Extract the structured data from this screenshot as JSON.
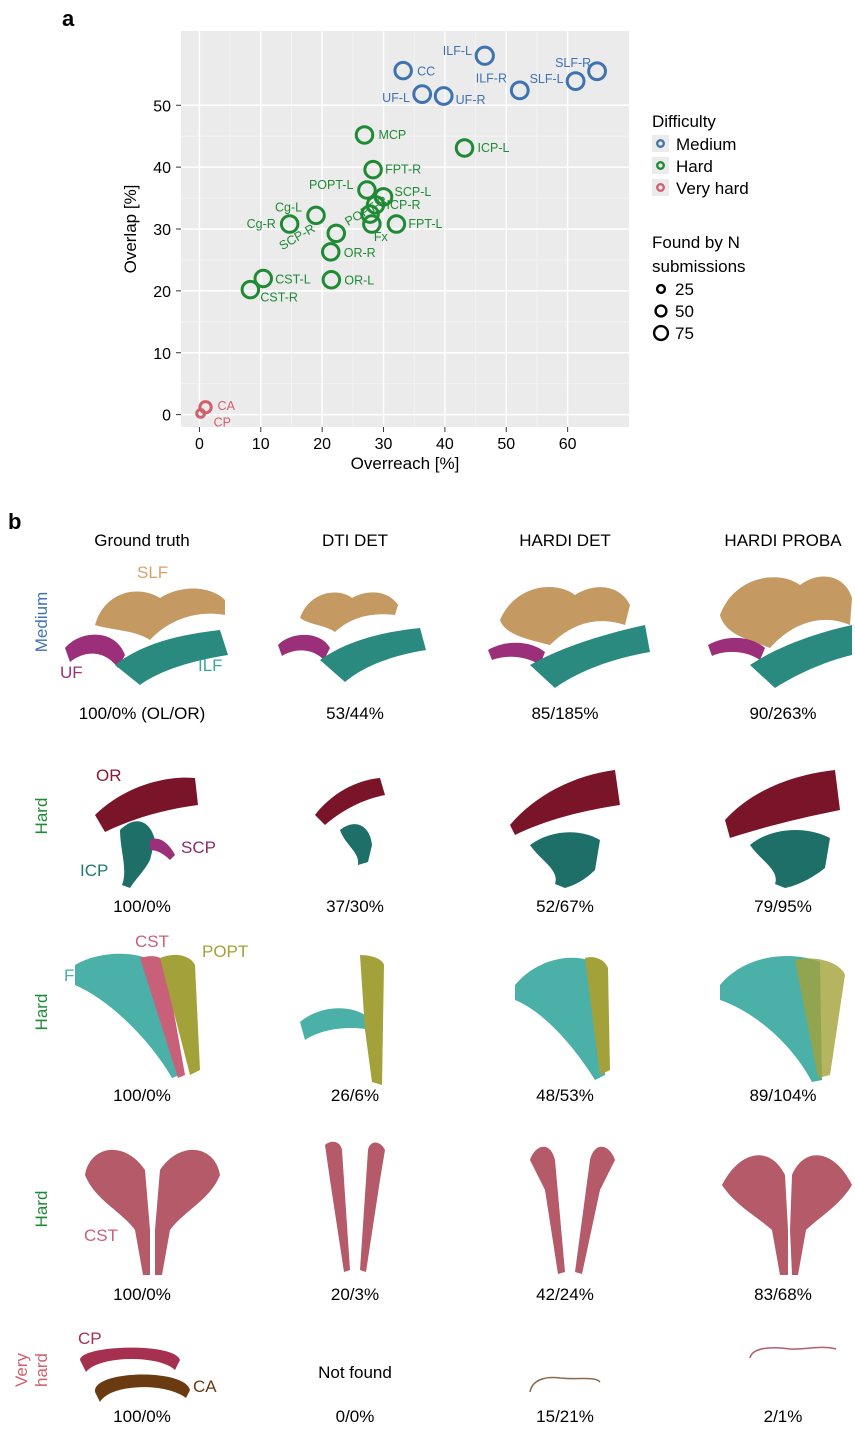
{
  "panel_a": {
    "label": "a"
  },
  "panel_b": {
    "label": "b"
  },
  "chart_data": {
    "type": "scatter",
    "xlabel": "Overreach [%]",
    "ylabel": "Overlap [%]",
    "xlim": [
      -3,
      70
    ],
    "ylim": [
      -2,
      62
    ],
    "xticks": [
      0,
      10,
      20,
      30,
      40,
      50,
      60
    ],
    "yticks": [
      0,
      10,
      20,
      30,
      40,
      50
    ],
    "grid": true,
    "legend_difficulty_title": "Difficulty",
    "legend_size_title": "Found by N submissions",
    "legend_size_title_lines": [
      "Found by N",
      "submissions"
    ],
    "legend_size_values": [
      25,
      50,
      75
    ],
    "colors": {
      "Medium": "#3f73b0",
      "Hard": "#1f8a34",
      "Very hard": "#d0606e"
    },
    "series": [
      {
        "name": "Medium",
        "points": [
          {
            "label": "ILF-L",
            "x": 46.5,
            "y": 58.0,
            "n": 75
          },
          {
            "label": "CC",
            "x": 33.2,
            "y": 55.6,
            "n": 70
          },
          {
            "label": "SLF-R",
            "x": 64.8,
            "y": 55.5,
            "n": 72
          },
          {
            "label": "SLF-L",
            "x": 61.3,
            "y": 53.9,
            "n": 72
          },
          {
            "label": "ILF-R",
            "x": 52.2,
            "y": 52.4,
            "n": 72
          },
          {
            "label": "UF-L",
            "x": 36.3,
            "y": 51.8,
            "n": 72
          },
          {
            "label": "UF-R",
            "x": 39.8,
            "y": 51.5,
            "n": 72
          }
        ]
      },
      {
        "name": "Hard",
        "points": [
          {
            "label": "MCP",
            "x": 26.9,
            "y": 45.2,
            "n": 70
          },
          {
            "label": "ICP-L",
            "x": 43.2,
            "y": 43.1,
            "n": 70
          },
          {
            "label": "FPT-R",
            "x": 28.3,
            "y": 39.6,
            "n": 70
          },
          {
            "label": "POPT-L",
            "x": 27.3,
            "y": 36.3,
            "n": 70
          },
          {
            "label": "SCP-L",
            "x": 30.0,
            "y": 35.2,
            "n": 70
          },
          {
            "label": "ICP-R",
            "x": 28.7,
            "y": 33.9,
            "n": 70
          },
          {
            "label": "Cg-L",
            "x": 19.0,
            "y": 32.2,
            "n": 70
          },
          {
            "label": "POPT-R",
            "x": 27.8,
            "y": 32.4,
            "n": 70
          },
          {
            "label": "Cg-R",
            "x": 14.7,
            "y": 30.8,
            "n": 70
          },
          {
            "label": "FPT-L",
            "x": 32.1,
            "y": 30.8,
            "n": 70
          },
          {
            "label": "Fx",
            "x": 28.1,
            "y": 30.8,
            "n": 70
          },
          {
            "label": "SCP-R",
            "x": 22.3,
            "y": 29.3,
            "n": 70
          },
          {
            "label": "OR-R",
            "x": 21.4,
            "y": 26.3,
            "n": 70
          },
          {
            "label": "OR-L",
            "x": 21.5,
            "y": 21.8,
            "n": 70
          },
          {
            "label": "CST-L",
            "x": 10.4,
            "y": 22.0,
            "n": 70
          },
          {
            "label": "CST-R",
            "x": 8.3,
            "y": 20.2,
            "n": 70
          }
        ]
      },
      {
        "name": "Very hard",
        "points": [
          {
            "label": "CA",
            "x": 1.0,
            "y": 1.2,
            "n": 35
          },
          {
            "label": "CP",
            "x": 0.2,
            "y": 0.2,
            "n": 12
          }
        ]
      }
    ]
  },
  "grid_b": {
    "columns": [
      "Ground truth",
      "DTI DET",
      "HARDI DET",
      "HARDI PROBA"
    ],
    "rows": [
      {
        "difficulty": "Medium",
        "scores": [
          "100/0% (OL/OR)",
          "53/44%",
          "85/185%",
          "90/263%"
        ],
        "tract_labels": [
          "SLF",
          "UF",
          "ILF"
        ]
      },
      {
        "difficulty": "Hard",
        "scores": [
          "100/0%",
          "37/30%",
          "52/67%",
          "79/95%"
        ],
        "tract_labels": [
          "OR",
          "SCP",
          "ICP"
        ]
      },
      {
        "difficulty": "Hard",
        "scores": [
          "100/0%",
          "26/6%",
          "48/53%",
          "89/104%"
        ],
        "tract_labels": [
          "CST",
          "POPT",
          "FPT"
        ]
      },
      {
        "difficulty": "Hard",
        "scores": [
          "100/0%",
          "20/3%",
          "42/24%",
          "83/68%"
        ],
        "tract_labels": [
          "CST"
        ]
      },
      {
        "difficulty": "Very hard",
        "difficulty_lines": [
          "Very",
          "hard"
        ],
        "scores": [
          "100/0%",
          "0/0%",
          "15/21%",
          "2/1%"
        ],
        "tract_labels": [
          "CP",
          "CA"
        ],
        "not_found": "Not found"
      }
    ]
  }
}
